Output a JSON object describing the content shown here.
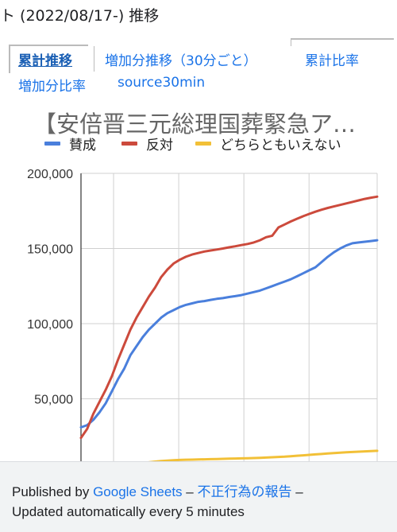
{
  "header": {
    "title": "ト (2022/08/17-) 推移"
  },
  "tabs": [
    {
      "label": "累計推移",
      "active": true
    },
    {
      "label": "増加分推移（30分ごと）",
      "active": false
    },
    {
      "label": "累計比率",
      "active": false
    },
    {
      "label": "増加分比率",
      "active": false
    },
    {
      "label": "source30min",
      "active": false
    }
  ],
  "chart_data": {
    "type": "line",
    "title": "【安倍晋三元総理国葬緊急ア…",
    "xlabel": "",
    "ylabel": "",
    "ylim": [
      0,
      200000
    ],
    "yticks": [
      "50,000",
      "100,000",
      "150,000",
      "200,000"
    ],
    "ytick_values": [
      50000,
      100000,
      150000,
      200000
    ],
    "grid": true,
    "legend_position": "top",
    "x": [
      0,
      1,
      2,
      3,
      4,
      5,
      6,
      7,
      8,
      9,
      10,
      11,
      12,
      13,
      14,
      15,
      16,
      17,
      18,
      19,
      20,
      21,
      22,
      23,
      24,
      25,
      26,
      27,
      28,
      29,
      30,
      31,
      32,
      33,
      34,
      35,
      36,
      37,
      38,
      39,
      40,
      41,
      42,
      43,
      44,
      45,
      46,
      47,
      48
    ],
    "series": [
      {
        "name": "賛成",
        "color": "#4a7fdc",
        "values": [
          31000,
          32500,
          36000,
          41000,
          47000,
          55000,
          63000,
          70000,
          79000,
          85000,
          91000,
          96000,
          100000,
          104000,
          107000,
          109000,
          111000,
          112500,
          113500,
          114500,
          115000,
          115800,
          116500,
          117000,
          117700,
          118300,
          119000,
          120000,
          121000,
          122000,
          123500,
          125000,
          126500,
          128000,
          129500,
          131500,
          133500,
          135500,
          137500,
          141000,
          144500,
          147500,
          150000,
          152000,
          153500,
          154000,
          154500,
          155000,
          155500
        ]
      },
      {
        "name": "反対",
        "color": "#cc4a3c",
        "values": [
          24000,
          30000,
          40000,
          48000,
          56000,
          65000,
          76000,
          86000,
          96000,
          104000,
          111000,
          118000,
          124000,
          131000,
          136000,
          140000,
          142500,
          144500,
          146000,
          147000,
          148000,
          148700,
          149300,
          150000,
          150800,
          151500,
          152300,
          153000,
          154000,
          155500,
          157500,
          158500,
          164000,
          166000,
          168000,
          169800,
          171500,
          173000,
          174500,
          175800,
          177000,
          178000,
          179000,
          180000,
          181000,
          182000,
          183000,
          183800,
          184500
        ]
      },
      {
        "name": "どちらともいえない",
        "color": "#f2c037",
        "values": [
          1000,
          1200,
          1500,
          2000,
          2600,
          3200,
          4000,
          4800,
          5600,
          6400,
          7100,
          7700,
          8200,
          8600,
          8900,
          9100,
          9300,
          9450,
          9550,
          9650,
          9750,
          9850,
          9950,
          10050,
          10150,
          10250,
          10350,
          10450,
          10600,
          10750,
          10900,
          11100,
          11300,
          11500,
          11800,
          12100,
          12400,
          12700,
          13000,
          13300,
          13600,
          13900,
          14200,
          14400,
          14600,
          14800,
          15000,
          15200,
          15400
        ]
      }
    ]
  },
  "footer": {
    "published_by": "Published by",
    "google_sheets": "Google Sheets",
    "dash1": "–",
    "report": "不正行為の報告",
    "dash2": "–",
    "updated": "Updated automatically every 5 minutes"
  }
}
